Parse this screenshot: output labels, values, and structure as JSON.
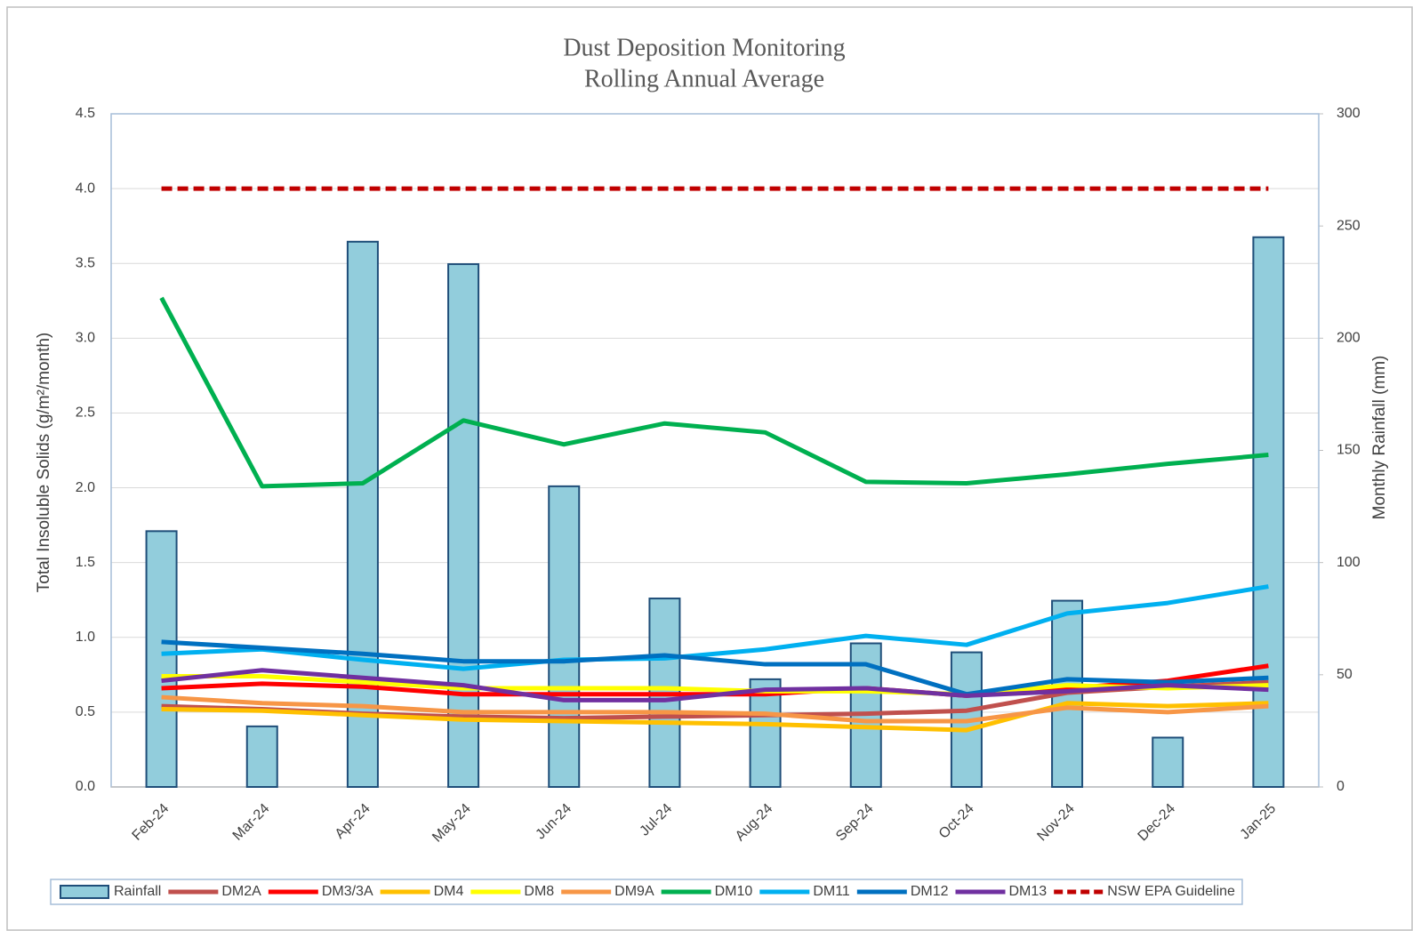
{
  "chart_data": {
    "type": "bar",
    "title": "Dust Deposition Monitoring",
    "subtitle": "Rolling Annual Average",
    "y_label": "Total Insoluble Solids (g/m²/month)",
    "y2_label": "Monthly Rainfall (mm)",
    "categories": [
      "Feb-24",
      "Mar-24",
      "Apr-24",
      "May-24",
      "Jun-24",
      "Jul-24",
      "Aug-24",
      "Sep-24",
      "Oct-24",
      "Nov-24",
      "Dec-24",
      "Jan-25"
    ],
    "ylim": [
      0,
      4.5
    ],
    "yticks": [
      {
        "value": 0,
        "label": "0.0"
      },
      0.5,
      {
        "value": 1,
        "label": "1.0"
      },
      1.5,
      {
        "value": 2,
        "label": "2.0"
      },
      2.5,
      {
        "value": 3,
        "label": "3.0"
      },
      3.5,
      {
        "value": 4,
        "label": "4.0"
      },
      4.5
    ],
    "y2lim": [
      0,
      300
    ],
    "y2ticks": [
      0,
      50,
      100,
      150,
      200,
      250,
      300
    ],
    "grid": true,
    "legend": "bottom",
    "series": [
      {
        "name": "Rainfall",
        "type": "bar",
        "axis": "y2",
        "color": "#92cddc",
        "edge_color": "#1f4e79",
        "values": [
          114,
          27,
          243,
          233,
          134,
          84,
          48,
          64,
          60,
          83,
          22,
          245
        ]
      },
      {
        "name": "DM2A",
        "type": "line",
        "color": "#c0504d",
        "values": [
          0.54,
          0.52,
          0.49,
          0.47,
          0.46,
          0.47,
          0.48,
          0.49,
          0.51,
          0.63,
          0.67,
          0.7
        ]
      },
      {
        "name": "DM3/3A",
        "type": "line",
        "color": "#ff0000",
        "values": [
          0.66,
          0.69,
          0.67,
          0.62,
          0.62,
          0.62,
          0.62,
          0.66,
          0.61,
          0.66,
          0.71,
          0.81
        ]
      },
      {
        "name": "DM4",
        "type": "line",
        "color": "#ffc000",
        "values": [
          0.52,
          0.51,
          0.48,
          0.45,
          0.44,
          0.43,
          0.42,
          0.4,
          0.38,
          0.56,
          0.54,
          0.56
        ]
      },
      {
        "name": "DM8",
        "type": "line",
        "color": "#ffff00",
        "values": [
          0.74,
          0.74,
          0.7,
          0.66,
          0.66,
          0.66,
          0.64,
          0.64,
          0.62,
          0.68,
          0.66,
          0.68
        ]
      },
      {
        "name": "DM9A",
        "type": "line",
        "color": "#f79646",
        "values": [
          0.6,
          0.56,
          0.54,
          0.5,
          0.5,
          0.5,
          0.49,
          0.44,
          0.44,
          0.53,
          0.5,
          0.54
        ]
      },
      {
        "name": "DM10",
        "type": "line",
        "color": "#00b050",
        "values": [
          3.27,
          2.01,
          2.03,
          2.45,
          2.29,
          2.43,
          2.37,
          2.04,
          2.03,
          2.09,
          2.16,
          2.22
        ]
      },
      {
        "name": "DM11",
        "type": "line",
        "color": "#00b0f0",
        "values": [
          0.89,
          0.92,
          0.85,
          0.79,
          0.85,
          0.86,
          0.92,
          1.01,
          0.95,
          1.16,
          1.23,
          1.34
        ]
      },
      {
        "name": "DM12",
        "type": "line",
        "color": "#0070c0",
        "values": [
          0.97,
          0.93,
          0.89,
          0.84,
          0.84,
          0.88,
          0.82,
          0.82,
          0.62,
          0.72,
          0.7,
          0.73
        ]
      },
      {
        "name": "DM13",
        "type": "line",
        "color": "#7030a0",
        "values": [
          0.71,
          0.78,
          0.73,
          0.68,
          0.58,
          0.58,
          0.65,
          0.66,
          0.61,
          0.64,
          0.68,
          0.65
        ]
      },
      {
        "name": "NSW EPA Guideline",
        "type": "line",
        "line_style": "dashed",
        "color": "#c00000",
        "values": [
          4.0,
          4.0,
          4.0,
          4.0,
          4.0,
          4.0,
          4.0,
          4.0,
          4.0,
          4.0,
          4.0,
          4.0
        ]
      }
    ]
  }
}
